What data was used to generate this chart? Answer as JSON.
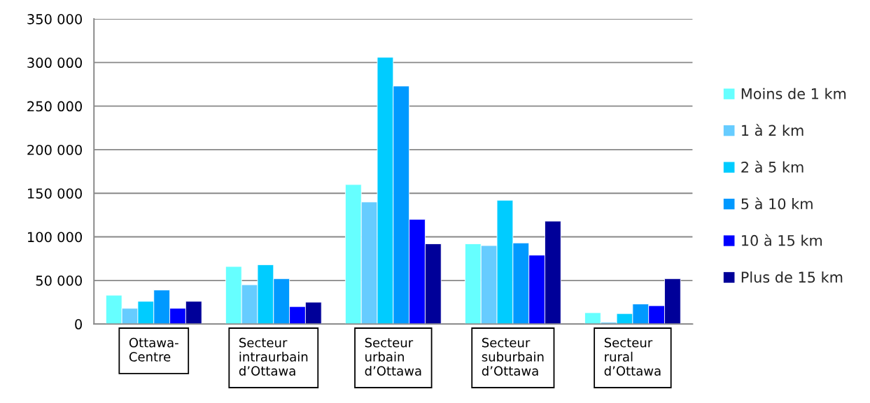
{
  "chart_data": {
    "type": "bar",
    "categories": [
      "Ottawa-\nCentre",
      "Secteur\nintraurbain\nd’Ottawa",
      "Secteur\nurbain\nd’Ottawa",
      "Secteur\nsuburbain\nd’Ottawa",
      "Secteur\nrural\nd’Ottawa"
    ],
    "series": [
      {
        "name": "Moins de 1 km",
        "color": "#66ffff",
        "values": [
          33000,
          66000,
          160000,
          92000,
          13000
        ]
      },
      {
        "name": "1 à 2 km",
        "color": "#66ccff",
        "values": [
          18000,
          45000,
          140000,
          90000,
          2000
        ]
      },
      {
        "name": "2 à 5 km",
        "color": "#00ccff",
        "values": [
          26000,
          68000,
          306000,
          142000,
          12000
        ]
      },
      {
        "name": "5 à 10 km",
        "color": "#0099ff",
        "values": [
          39000,
          52000,
          273000,
          93000,
          23000
        ]
      },
      {
        "name": "10 à 15 km",
        "color": "#0000ff",
        "values": [
          18000,
          20000,
          120000,
          79000,
          21000
        ]
      },
      {
        "name": "Plus de 15 km",
        "color": "#000099",
        "values": [
          26000,
          25000,
          92000,
          118000,
          52000
        ]
      }
    ],
    "ylim": [
      0,
      350000
    ],
    "yticks": [
      {
        "value": 0,
        "label": "0"
      },
      {
        "value": 50000,
        "label": "50 000"
      },
      {
        "value": 100000,
        "label": "100 000"
      },
      {
        "value": 150000,
        "label": "150 000"
      },
      {
        "value": 200000,
        "label": "200 000"
      },
      {
        "value": 250000,
        "label": "250 000"
      },
      {
        "value": 300000,
        "label": "300 000"
      },
      {
        "value": 350000,
        "label": "350 000"
      }
    ],
    "grid": "y",
    "legend": "right"
  }
}
